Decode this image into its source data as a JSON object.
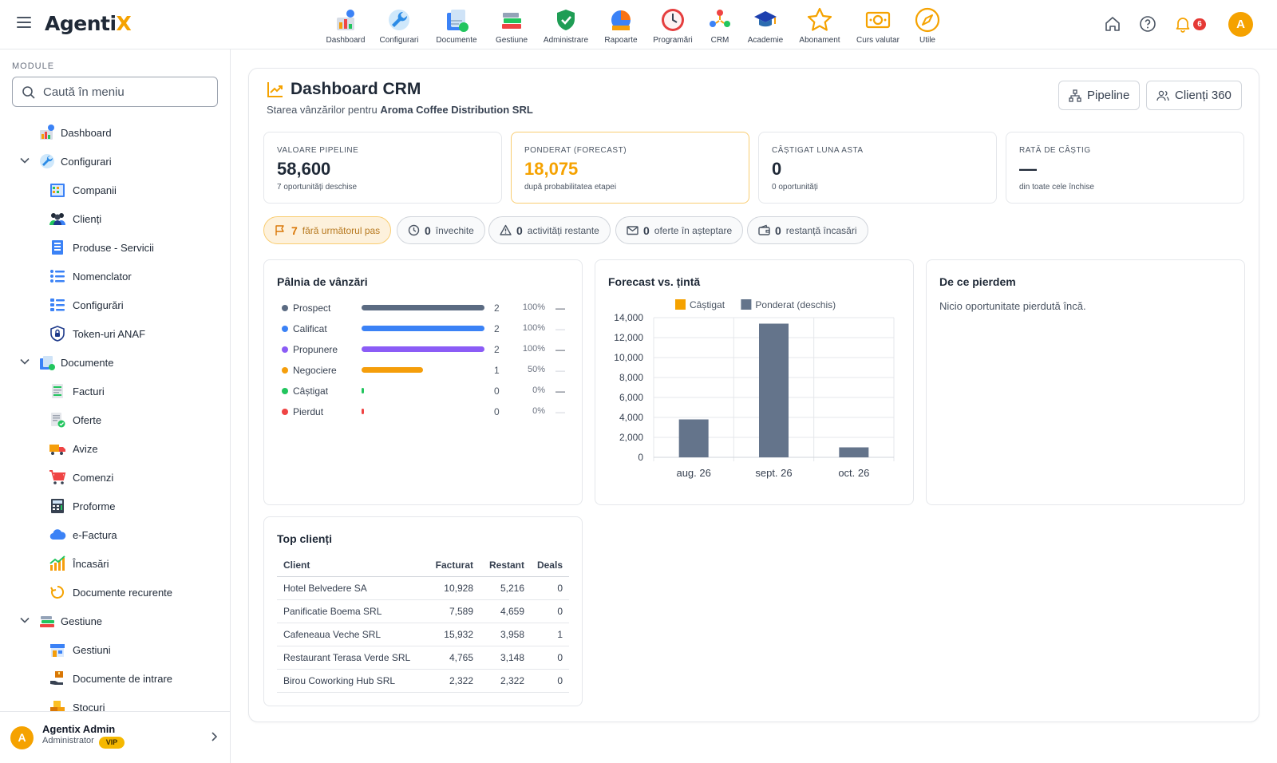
{
  "app": {
    "logo_main": "Agenti",
    "logo_accent": "X"
  },
  "topnav": [
    {
      "label": "Dashboard",
      "icon": "dashboard-icon"
    },
    {
      "label": "Configurari",
      "icon": "wrench-icon"
    },
    {
      "label": "Documente",
      "icon": "documents-icon"
    },
    {
      "label": "Gestiune",
      "icon": "books-icon"
    },
    {
      "label": "Administrare",
      "icon": "shield-icon"
    },
    {
      "label": "Rapoarte",
      "icon": "report-icon"
    },
    {
      "label": "Programări",
      "icon": "clock-icon"
    },
    {
      "label": "CRM",
      "icon": "crm-icon"
    },
    {
      "label": "Academie",
      "icon": "graduation-cap-icon"
    },
    {
      "label": "Abonament",
      "icon": "star-icon"
    },
    {
      "label": "Curs valutar",
      "icon": "banknote-icon"
    },
    {
      "label": "Utile",
      "icon": "compass-icon"
    }
  ],
  "topright": {
    "notif_count": "6",
    "avatar_initial": "A"
  },
  "sidebar": {
    "section_title": "MODULE",
    "search_placeholder": "Caută în meniu",
    "items": [
      {
        "label": "Dashboard",
        "level": 0,
        "icon": "dashboard-icon"
      },
      {
        "label": "Configurari",
        "level": 0,
        "expanded": true,
        "icon": "wrench-icon"
      },
      {
        "label": "Companii",
        "level": 1,
        "icon": "building-icon"
      },
      {
        "label": "Clienți",
        "level": 1,
        "icon": "users-icon"
      },
      {
        "label": "Produse - Servicii",
        "level": 1,
        "icon": "product-list-icon"
      },
      {
        "label": "Nomenclator",
        "level": 1,
        "icon": "list-icon"
      },
      {
        "label": "Configurări",
        "level": 1,
        "icon": "settings-list-icon"
      },
      {
        "label": "Token-uri ANAF",
        "level": 1,
        "icon": "lock-shield-icon"
      },
      {
        "label": "Documente",
        "level": 0,
        "expanded": true,
        "icon": "documents-icon"
      },
      {
        "label": "Facturi",
        "level": 1,
        "icon": "invoice-icon"
      },
      {
        "label": "Oferte",
        "level": 1,
        "icon": "offer-icon"
      },
      {
        "label": "Avize",
        "level": 1,
        "icon": "truck-icon"
      },
      {
        "label": "Comenzi",
        "level": 1,
        "icon": "cart-icon"
      },
      {
        "label": "Proforme",
        "level": 1,
        "icon": "calculator-icon"
      },
      {
        "label": "e-Factura",
        "level": 1,
        "icon": "cloud-icon"
      },
      {
        "label": "Încasări",
        "level": 1,
        "icon": "growth-chart-icon"
      },
      {
        "label": "Documente recurente",
        "level": 1,
        "icon": "recurring-icon"
      },
      {
        "label": "Gestiune",
        "level": 0,
        "expanded": true,
        "icon": "books-icon"
      },
      {
        "label": "Gestiuni",
        "level": 1,
        "icon": "store-icon"
      },
      {
        "label": "Documente de intrare",
        "level": 1,
        "icon": "hand-box-icon"
      },
      {
        "label": "Stocuri",
        "level": 1,
        "icon": "boxes-icon"
      }
    ],
    "user": {
      "initial": "A",
      "name": "Agentix Admin",
      "role": "Administrator",
      "badge": "VIP"
    }
  },
  "page": {
    "title": "Dashboard CRM",
    "subtitle_prefix": "Starea vânzărilor pentru",
    "company": "Aroma Coffee Distribution SRL",
    "buttons": {
      "pipeline": "Pipeline",
      "clients360": "Clienți 360"
    }
  },
  "kpis": [
    {
      "label": "VALOARE PIPELINE",
      "value": "58,600",
      "note": "7 oportunități deschise"
    },
    {
      "label": "PONDERAT (FORECAST)",
      "value": "18,075",
      "note": "după probabilitatea etapei"
    },
    {
      "label": "CÂȘTIGAT LUNA ASTA",
      "value": "0",
      "note": "0 oportunități"
    },
    {
      "label": "RATĂ DE CÂȘTIG",
      "value": "—",
      "note": "din toate cele închise"
    }
  ],
  "chips": [
    {
      "count": "7",
      "label": "fără următorul pas",
      "icon": "flag-icon"
    },
    {
      "count": "0",
      "label": "învechite",
      "icon": "clock-icon"
    },
    {
      "count": "0",
      "label": "activități restante",
      "icon": "warning-icon"
    },
    {
      "count": "0",
      "label": "oferte în așteptare",
      "icon": "mail-icon"
    },
    {
      "count": "0",
      "label": "restanță încasări",
      "icon": "wallet-icon"
    }
  ],
  "funnel": {
    "title": "Pâlnia de vânzări",
    "rows": [
      {
        "name": "Prospect",
        "count": "2",
        "pct": "100%",
        "fill": 1.0,
        "value": "—",
        "color": "#5b6b82"
      },
      {
        "name": "Calificat",
        "count": "2",
        "pct": "100%",
        "fill": 1.0,
        "value": "—",
        "color": "#3b82f6"
      },
      {
        "name": "Propunere",
        "count": "2",
        "pct": "100%",
        "fill": 1.0,
        "value": "—",
        "color": "#8b5cf6"
      },
      {
        "name": "Negociere",
        "count": "1",
        "pct": "50%",
        "fill": 0.5,
        "value": "—",
        "color": "#f59e0b"
      },
      {
        "name": "Câștigat",
        "count": "0",
        "pct": "0%",
        "fill": 0,
        "value": "—",
        "color": "#22c55e"
      },
      {
        "name": "Pierdut",
        "count": "0",
        "pct": "0%",
        "fill": 0,
        "value": "—",
        "color": "#ef4444"
      }
    ]
  },
  "forecast_panel": {
    "title": "Forecast vs. țintă"
  },
  "chart_data": {
    "type": "bar",
    "title": "",
    "categories": [
      "aug. 26",
      "sept. 26",
      "oct. 26"
    ],
    "series": [
      {
        "name": "Câștigat",
        "color": "#f5a200",
        "values": [
          0,
          0,
          0
        ]
      },
      {
        "name": "Ponderat (deschis)",
        "color": "#64748b",
        "values": [
          3800,
          13400,
          1000
        ]
      }
    ],
    "ylim": [
      0,
      14000
    ],
    "yticks": [
      "0",
      "2,000",
      "4,000",
      "6,000",
      "8,000",
      "10,000",
      "12,000",
      "14,000"
    ],
    "grid": true,
    "legend": "top"
  },
  "lost_panel": {
    "title": "De ce pierdem",
    "empty": "Nicio oportunitate pierdută încă."
  },
  "top_clients": {
    "title": "Top clienți",
    "columns": [
      "Client",
      "Facturat",
      "Restant",
      "Deals"
    ],
    "rows": [
      [
        "Hotel Belvedere SA",
        "10,928",
        "5,216",
        "0"
      ],
      [
        "Panificatie Boema SRL",
        "7,589",
        "4,659",
        "0"
      ],
      [
        "Cafeneaua Veche SRL",
        "15,932",
        "3,958",
        "1"
      ],
      [
        "Restaurant Terasa Verde SRL",
        "4,765",
        "3,148",
        "0"
      ],
      [
        "Birou Coworking Hub SRL",
        "2,322",
        "2,322",
        "0"
      ]
    ]
  }
}
